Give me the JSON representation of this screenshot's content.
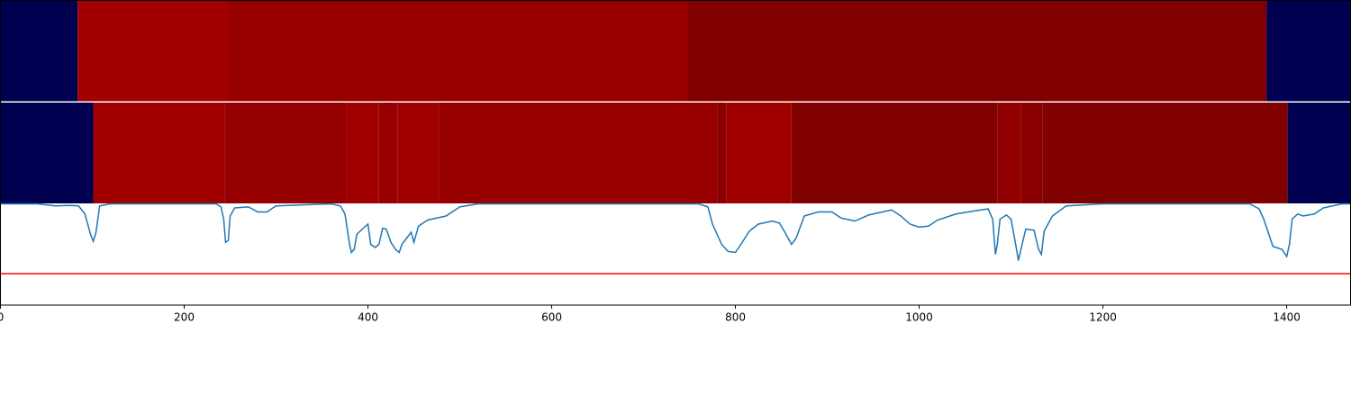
{
  "chart_data": {
    "type": "segmentation",
    "xlim": [
      0,
      1470
    ],
    "xticks": [
      0,
      200,
      400,
      600,
      800,
      1000,
      1200,
      1400
    ],
    "ylim": [
      0,
      1
    ],
    "rows": [
      {
        "segments": [
          {
            "start": 0,
            "end": 84,
            "color": "#000050"
          },
          {
            "start": 84,
            "end": 249,
            "color": "#a00000"
          },
          {
            "start": 249,
            "end": 748,
            "color": "#980000"
          },
          {
            "start": 748,
            "end": 1378,
            "color": "#800000"
          },
          {
            "start": 1378,
            "end": 1470,
            "color": "#000050"
          }
        ]
      },
      {
        "segments": [
          {
            "start": 0,
            "end": 101,
            "color": "#000050"
          },
          {
            "start": 101,
            "end": 244,
            "color": "#a00000"
          },
          {
            "start": 244,
            "end": 376,
            "color": "#960000"
          },
          {
            "start": 376,
            "end": 412,
            "color": "#a00000"
          },
          {
            "start": 412,
            "end": 432,
            "color": "#960000"
          },
          {
            "start": 432,
            "end": 477,
            "color": "#a00000"
          },
          {
            "start": 477,
            "end": 780,
            "color": "#980000"
          },
          {
            "start": 780,
            "end": 790,
            "color": "#8a0000"
          },
          {
            "start": 790,
            "end": 861,
            "color": "#a00000"
          },
          {
            "start": 861,
            "end": 1085,
            "color": "#800000"
          },
          {
            "start": 1085,
            "end": 1111,
            "color": "#900000"
          },
          {
            "start": 1111,
            "end": 1134,
            "color": "#8a0000"
          },
          {
            "start": 1134,
            "end": 1401,
            "color": "#800000"
          },
          {
            "start": 1401,
            "end": 1470,
            "color": "#000050"
          }
        ]
      }
    ],
    "series": [
      {
        "color": "#1f77b4",
        "x": [
          0,
          40,
          60,
          75,
          85,
          92,
          98,
          101,
          104,
          108,
          120,
          200,
          235,
          240,
          243,
          245,
          248,
          250,
          255,
          270,
          280,
          290,
          300,
          360,
          370,
          375,
          380,
          382,
          385,
          388,
          395,
          400,
          403,
          408,
          412,
          416,
          420,
          425,
          430,
          434,
          437,
          442,
          447,
          450,
          455,
          465,
          475,
          485,
          500,
          520,
          760,
          770,
          775,
          785,
          792,
          800,
          806,
          815,
          825,
          840,
          848,
          855,
          861,
          866,
          875,
          890,
          905,
          915,
          930,
          945,
          960,
          970,
          980,
          990,
          1000,
          1010,
          1020,
          1040,
          1060,
          1075,
          1080,
          1083,
          1085,
          1088,
          1095,
          1100,
          1105,
          1108,
          1112,
          1116,
          1125,
          1130,
          1133,
          1136,
          1145,
          1160,
          1200,
          1360,
          1370,
          1375,
          1385,
          1395,
          1400,
          1403,
          1406,
          1412,
          1418,
          1430,
          1440,
          1460,
          1470
        ],
        "values": [
          1.0,
          1.0,
          0.98,
          0.985,
          0.98,
          0.9,
          0.7,
          0.63,
          0.72,
          0.98,
          1.0,
          1.0,
          1.0,
          0.97,
          0.85,
          0.62,
          0.64,
          0.88,
          0.96,
          0.97,
          0.92,
          0.92,
          0.98,
          1.0,
          0.98,
          0.9,
          0.6,
          0.52,
          0.55,
          0.7,
          0.76,
          0.8,
          0.6,
          0.57,
          0.6,
          0.76,
          0.75,
          0.62,
          0.55,
          0.52,
          0.6,
          0.66,
          0.72,
          0.62,
          0.78,
          0.84,
          0.86,
          0.88,
          0.97,
          1.0,
          1.0,
          0.97,
          0.8,
          0.6,
          0.53,
          0.52,
          0.6,
          0.73,
          0.8,
          0.83,
          0.81,
          0.7,
          0.6,
          0.66,
          0.88,
          0.92,
          0.92,
          0.86,
          0.83,
          0.89,
          0.92,
          0.94,
          0.88,
          0.8,
          0.77,
          0.78,
          0.84,
          0.9,
          0.93,
          0.95,
          0.85,
          0.5,
          0.6,
          0.85,
          0.89,
          0.85,
          0.6,
          0.44,
          0.6,
          0.75,
          0.74,
          0.55,
          0.5,
          0.73,
          0.88,
          0.98,
          1.0,
          1.0,
          0.95,
          0.85,
          0.58,
          0.55,
          0.48,
          0.6,
          0.85,
          0.9,
          0.88,
          0.9,
          0.96,
          1.0,
          1.0
        ]
      }
    ],
    "threshold": {
      "value": 0.31,
      "color": "#ff0000"
    }
  }
}
